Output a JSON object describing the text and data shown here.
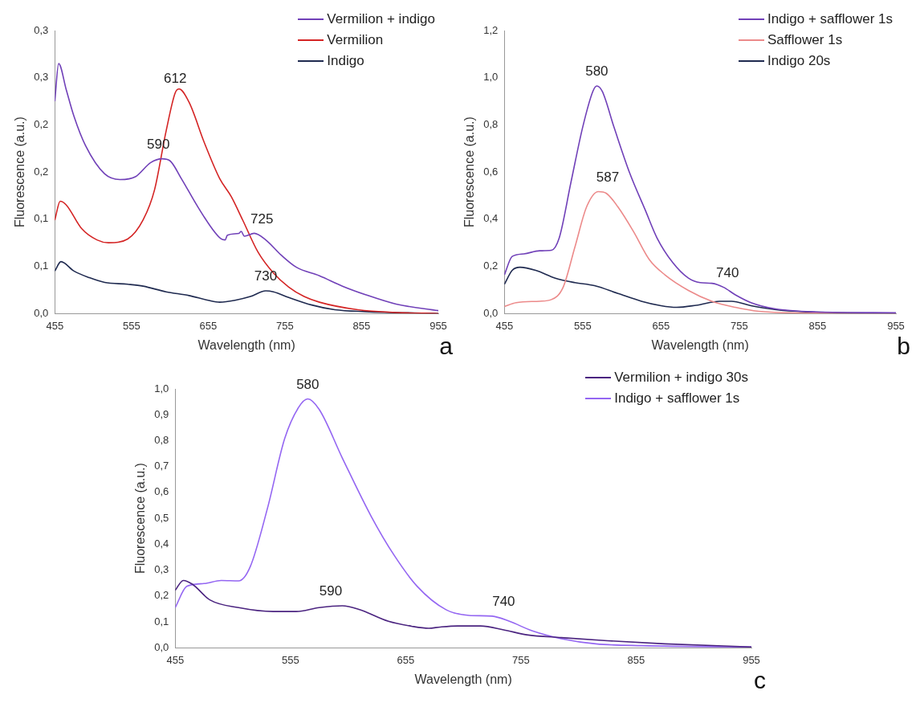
{
  "chart_data": [
    {
      "type": "line",
      "xlabel": "Wavelength (nm)",
      "ylabel": "Fluorescence (a.u.)",
      "xlim": [
        455,
        955
      ],
      "xticks": [
        455,
        555,
        655,
        755,
        855,
        955
      ],
      "ylim": [
        0,
        0.3
      ],
      "yticks": [
        {
          "value": 0,
          "label": "0,0"
        },
        {
          "value": 0.05,
          "label": "0,1"
        },
        {
          "value": 0.1,
          "label": "0,1"
        },
        {
          "value": 0.15,
          "label": "0,2"
        },
        {
          "value": 0.2,
          "label": "0,2"
        },
        {
          "value": 0.25,
          "label": "0,3"
        },
        {
          "value": 0.3,
          "label": "0,3"
        }
      ],
      "legend": "top right",
      "marker": "none",
      "series": [
        {
          "name": "Vermilion + indigo",
          "color": "#7040b8",
          "x": [
            455,
            460,
            470,
            480,
            495,
            520,
            540,
            560,
            580,
            595,
            605,
            620,
            640,
            660,
            672,
            677,
            680,
            695,
            698,
            702,
            715,
            730,
            750,
            770,
            800,
            830,
            860,
            900,
            955
          ],
          "values": [
            0.225,
            0.265,
            0.237,
            0.209,
            0.178,
            0.148,
            0.142,
            0.145,
            0.16,
            0.164,
            0.162,
            0.143,
            0.115,
            0.09,
            0.079,
            0.078,
            0.083,
            0.085,
            0.087,
            0.082,
            0.085,
            0.078,
            0.062,
            0.049,
            0.04,
            0.029,
            0.02,
            0.01,
            0.003
          ]
        },
        {
          "name": "Vermilion",
          "color": "#d42424",
          "x": [
            455,
            462,
            470,
            490,
            510,
            525,
            550,
            570,
            585,
            600,
            612,
            617,
            630,
            650,
            670,
            685,
            700,
            720,
            740,
            760,
            780,
            800,
            850,
            900,
            955
          ],
          "values": [
            0.099,
            0.119,
            0.115,
            0.09,
            0.078,
            0.075,
            0.079,
            0.099,
            0.131,
            0.193,
            0.234,
            0.238,
            0.224,
            0.181,
            0.143,
            0.124,
            0.099,
            0.065,
            0.043,
            0.028,
            0.018,
            0.012,
            0.004,
            0.001,
            0
          ]
        },
        {
          "name": "Indigo",
          "color": "#1f2a50",
          "x": [
            455,
            463,
            480,
            500,
            520,
            550,
            570,
            600,
            630,
            655,
            670,
            690,
            710,
            730,
            740,
            760,
            790,
            820,
            860,
            955
          ],
          "values": [
            0.045,
            0.055,
            0.045,
            0.038,
            0.033,
            0.031,
            0.029,
            0.023,
            0.019,
            0.014,
            0.012,
            0.014,
            0.018,
            0.024,
            0.023,
            0.017,
            0.009,
            0.004,
            0.002,
            0
          ]
        }
      ],
      "annotations": [
        {
          "text": "612",
          "x": 612,
          "y": 0.234
        },
        {
          "text": "590",
          "x": 590,
          "y": 0.164
        },
        {
          "text": "725",
          "x": 725,
          "y": 0.085
        },
        {
          "text": "730",
          "x": 730,
          "y": 0.024
        },
        "a"
      ]
    },
    {
      "type": "line",
      "xlabel": "Wavelength (nm)",
      "ylabel": "Fluorescence (a.u.)",
      "xlim": [
        455,
        955
      ],
      "xticks": [
        455,
        555,
        655,
        755,
        855,
        955
      ],
      "ylim": [
        0,
        1.2
      ],
      "yticks": [
        {
          "value": 0,
          "label": "0,0"
        },
        {
          "value": 0.2,
          "label": "0,2"
        },
        {
          "value": 0.4,
          "label": "0,4"
        },
        {
          "value": 0.6,
          "label": "0,6"
        },
        {
          "value": 0.8,
          "label": "0,8"
        },
        {
          "value": 1,
          "label": "1,0"
        },
        {
          "value": 1.2,
          "label": "1,2"
        }
      ],
      "legend": "top right",
      "marker": "none",
      "series": [
        {
          "name": "Indigo + safflower 1s",
          "color": "#7040b8",
          "x": [
            455,
            465,
            480,
            500,
            515,
            525,
            540,
            555,
            568,
            573,
            580,
            595,
            615,
            635,
            650,
            670,
            690,
            705,
            720,
            735,
            750,
            770,
            800,
            850,
            955
          ],
          "values": [
            0.164,
            0.242,
            0.253,
            0.266,
            0.268,
            0.32,
            0.556,
            0.79,
            0.942,
            0.965,
            0.942,
            0.79,
            0.596,
            0.438,
            0.32,
            0.216,
            0.15,
            0.131,
            0.128,
            0.111,
            0.079,
            0.046,
            0.02,
            0.007,
            0.003
          ]
        },
        {
          "name": "Safflower 1s",
          "color": "#ec8a8a",
          "x": [
            455,
            470,
            500,
            515,
            530,
            545,
            560,
            575,
            585,
            600,
            620,
            640,
            660,
            690,
            720,
            750,
            780,
            820,
            955
          ],
          "values": [
            0.03,
            0.046,
            0.052,
            0.059,
            0.111,
            0.281,
            0.452,
            0.517,
            0.51,
            0.452,
            0.347,
            0.229,
            0.164,
            0.098,
            0.052,
            0.026,
            0.009,
            0.003,
            0
          ]
        },
        {
          "name": "Indigo 20s",
          "color": "#1f2a50",
          "x": [
            455,
            465,
            475,
            495,
            520,
            545,
            570,
            600,
            630,
            655,
            675,
            700,
            730,
            745,
            770,
            800,
            840,
            955
          ],
          "values": [
            0.124,
            0.183,
            0.196,
            0.183,
            0.15,
            0.131,
            0.118,
            0.085,
            0.052,
            0.033,
            0.026,
            0.035,
            0.052,
            0.052,
            0.033,
            0.017,
            0.007,
            0
          ]
        }
      ],
      "annotations": [
        {
          "text": "580",
          "x": 573,
          "y": 0.965
        },
        {
          "text": "587",
          "x": 587,
          "y": 0.517
        },
        {
          "text": "740",
          "x": 740,
          "y": 0.111
        },
        "b"
      ]
    },
    {
      "type": "line",
      "xlabel": "Wavelength (nm)",
      "ylabel": "Fluorescence (a.u.)",
      "xlim": [
        455,
        955
      ],
      "xticks": [
        455,
        555,
        655,
        755,
        855,
        955
      ],
      "ylim": [
        0,
        1
      ],
      "yticks": [
        {
          "value": 0,
          "label": "0,0"
        },
        {
          "value": 0.1,
          "label": "0,1"
        },
        {
          "value": 0.2,
          "label": "0,2"
        },
        {
          "value": 0.3,
          "label": "0,3"
        },
        {
          "value": 0.4,
          "label": "0,4"
        },
        {
          "value": 0.5,
          "label": "0,5"
        },
        {
          "value": 0.6,
          "label": "0,6"
        },
        {
          "value": 0.7,
          "label": "0,7"
        },
        {
          "value": 0.8,
          "label": "0,8"
        },
        {
          "value": 0.9,
          "label": "0,9"
        },
        {
          "value": 1,
          "label": "1,0"
        }
      ],
      "legend": "top right",
      "marker": "none",
      "series": [
        {
          "name": "Vermilion + indigo 30s",
          "color": "#4b2480",
          "x": [
            455,
            462,
            470,
            485,
            510,
            540,
            560,
            580,
            600,
            615,
            640,
            660,
            675,
            685,
            700,
            720,
            740,
            760,
            790,
            830,
            880,
            955
          ],
          "values": [
            0.222,
            0.26,
            0.245,
            0.185,
            0.155,
            0.14,
            0.14,
            0.155,
            0.162,
            0.147,
            0.102,
            0.083,
            0.075,
            0.08,
            0.084,
            0.084,
            0.069,
            0.05,
            0.039,
            0.027,
            0.015,
            0.003
          ]
        },
        {
          "name": "Indigo + safflower 1s",
          "color": "#9466f2",
          "x": [
            455,
            465,
            480,
            495,
            510,
            520,
            535,
            550,
            562,
            570,
            580,
            600,
            625,
            645,
            665,
            690,
            710,
            730,
            745,
            765,
            790,
            820,
            860,
            955
          ],
          "values": [
            0.155,
            0.237,
            0.248,
            0.26,
            0.258,
            0.312,
            0.538,
            0.808,
            0.928,
            0.961,
            0.92,
            0.733,
            0.508,
            0.357,
            0.237,
            0.147,
            0.125,
            0.122,
            0.102,
            0.065,
            0.035,
            0.015,
            0.008,
            0.003
          ]
        }
      ],
      "annotations": [
        {
          "text": "580",
          "x": 570,
          "y": 0.961
        },
        {
          "text": "590",
          "x": 590,
          "y": 0.162
        },
        {
          "text": "740",
          "x": 740,
          "y": 0.122
        },
        "c"
      ]
    }
  ]
}
